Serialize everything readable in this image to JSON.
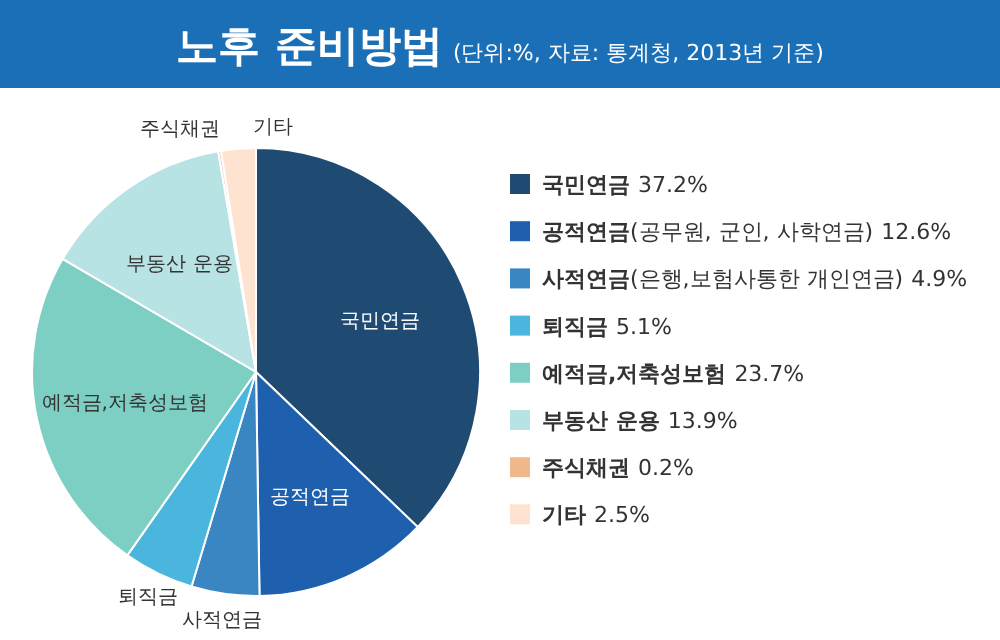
{
  "chart_data": {
    "type": "pie",
    "title": "노후 준비방법",
    "subtitle": "(단위:%, 자료: 통계청, 2013년 기준)",
    "categories": [
      "국민연금",
      "공적연금",
      "사적연금",
      "퇴직금",
      "예적금,저축성보험",
      "부동산 운용",
      "주식채권",
      "기타"
    ],
    "values": [
      37.2,
      12.6,
      4.9,
      5.1,
      23.7,
      13.9,
      0.2,
      2.5
    ],
    "colors": [
      "#1f4a72",
      "#1f60ae",
      "#3a86c2",
      "#4ab6dd",
      "#7dcfc4",
      "#b8e3e4",
      "#f1b98b",
      "#fde3d0"
    ],
    "value_labels": [
      "37.2%",
      "12.6%",
      "4.9%",
      "5.1%",
      "23.7%",
      "13.9%",
      "0.2%",
      "2.5%"
    ],
    "legend": "right",
    "annotations": [
      {
        "text": "(공무원, 군인, 사학연금)",
        "x": "공적연금"
      },
      {
        "text": "(은행,보험사통한 개인연금)",
        "x": "사적연금"
      }
    ]
  }
}
